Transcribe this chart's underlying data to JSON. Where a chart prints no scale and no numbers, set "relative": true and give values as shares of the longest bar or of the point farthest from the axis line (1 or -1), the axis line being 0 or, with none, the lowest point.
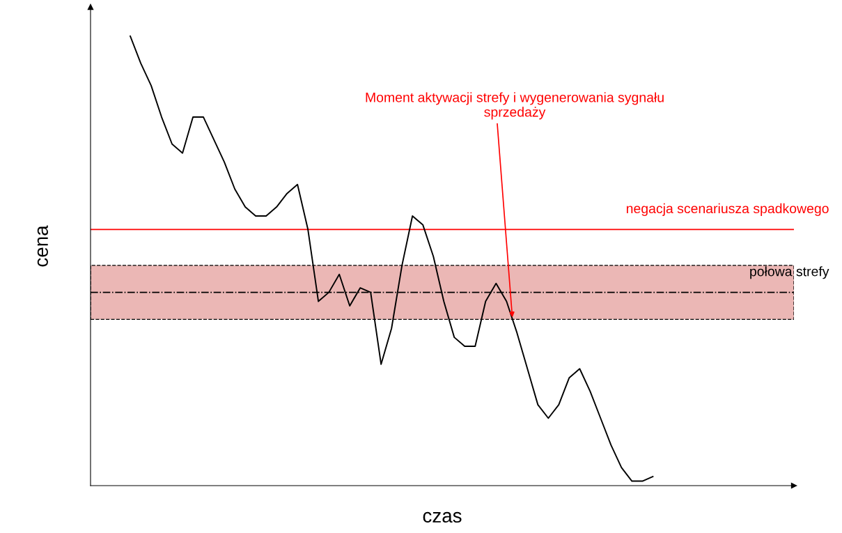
{
  "chart_data": {
    "type": "line",
    "relative": true,
    "xlabel": "czas",
    "ylabel": "cena",
    "color": "#000000",
    "categories": [
      null,
      null,
      null,
      null,
      null,
      null,
      null,
      null,
      null,
      null,
      null,
      null,
      null,
      null,
      null,
      null,
      null,
      null,
      null,
      null,
      null,
      null,
      null,
      null,
      null,
      null,
      null,
      null,
      null,
      null,
      null,
      null,
      null,
      null,
      null,
      null,
      null,
      null,
      null,
      null,
      null,
      null,
      null,
      null,
      null,
      null,
      null,
      null,
      null,
      null,
      null
    ],
    "values": [
      1.0,
      0.94,
      0.89,
      0.82,
      0.76,
      0.74,
      0.82,
      0.82,
      0.77,
      0.72,
      0.66,
      0.62,
      0.6,
      0.6,
      0.62,
      0.65,
      0.67,
      0.57,
      0.41,
      0.43,
      0.47,
      0.4,
      0.44,
      0.43,
      0.27,
      0.35,
      0.49,
      0.6,
      0.58,
      0.51,
      0.41,
      0.33,
      0.31,
      0.31,
      0.41,
      0.45,
      0.41,
      0.34,
      0.26,
      0.18,
      0.15,
      0.18,
      0.24,
      0.26,
      0.21,
      0.15,
      0.09,
      0.04,
      0.01,
      0.01,
      0.02
    ],
    "bands": [
      {
        "axis": "y",
        "from": 0.37,
        "to": 0.49,
        "color": "#ebb7b5"
      }
    ],
    "ref_lines": [
      {
        "axis": "y",
        "value": 0.43,
        "label": "połowa strefy",
        "color": "#000000",
        "line_style": "dashdot"
      },
      {
        "axis": "y",
        "value": 0.57,
        "label": "negacja scenariusza spadkowego",
        "color": "#ff0000",
        "line_style": "solid"
      }
    ],
    "annotations": [
      "Moment aktywacji strefy i wygenerowania sygnału sprzedaży"
    ]
  }
}
